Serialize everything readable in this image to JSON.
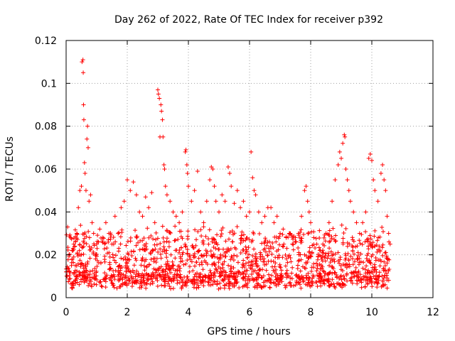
{
  "chart_data": {
    "type": "scatter",
    "title": "Day 262 of 2022, Rate Of TEC Index for receiver p392",
    "xlabel": "GPS time / hours",
    "ylabel": "ROTI / TECUs",
    "xlim": [
      0,
      12
    ],
    "ylim": [
      0,
      0.12
    ],
    "xticks": [
      0,
      2,
      4,
      6,
      8,
      10,
      12
    ],
    "xtick_labels": [
      "0",
      "2",
      "4",
      "6",
      "8",
      "10",
      "12"
    ],
    "yticks": [
      0,
      0.02,
      0.04,
      0.06,
      0.08,
      0.1,
      0.12
    ],
    "ytick_labels": [
      "0",
      "0.02",
      "0.04",
      "0.06",
      "0.08",
      "0.1",
      "0.12"
    ],
    "grid": true,
    "marker": "+",
    "color": "#ff0000",
    "data_time_range_hours": [
      0,
      10.6
    ],
    "series": [
      {
        "name": "ROTI",
        "points": [
          [
            0.0,
            0.012
          ],
          [
            0.05,
            0.033
          ],
          [
            0.1,
            0.02
          ],
          [
            0.15,
            0.028
          ],
          [
            0.2,
            0.018
          ],
          [
            0.25,
            0.025
          ],
          [
            0.3,
            0.015
          ],
          [
            0.35,
            0.03
          ],
          [
            0.4,
            0.042
          ],
          [
            0.45,
            0.05
          ],
          [
            0.5,
            0.052
          ],
          [
            0.52,
            0.11
          ],
          [
            0.55,
            0.111
          ],
          [
            0.56,
            0.105
          ],
          [
            0.57,
            0.09
          ],
          [
            0.58,
            0.083
          ],
          [
            0.6,
            0.063
          ],
          [
            0.62,
            0.058
          ],
          [
            0.65,
            0.05
          ],
          [
            0.68,
            0.074
          ],
          [
            0.7,
            0.08
          ],
          [
            0.72,
            0.07
          ],
          [
            0.75,
            0.045
          ],
          [
            0.8,
            0.048
          ],
          [
            0.85,
            0.035
          ],
          [
            0.9,
            0.03
          ],
          [
            1.0,
            0.025
          ],
          [
            1.1,
            0.032
          ],
          [
            1.2,
            0.028
          ],
          [
            1.3,
            0.035
          ],
          [
            1.4,
            0.03
          ],
          [
            1.5,
            0.025
          ],
          [
            1.6,
            0.038
          ],
          [
            1.7,
            0.03
          ],
          [
            1.8,
            0.042
          ],
          [
            1.9,
            0.045
          ],
          [
            2.0,
            0.055
          ],
          [
            2.1,
            0.05
          ],
          [
            2.2,
            0.054
          ],
          [
            2.3,
            0.048
          ],
          [
            2.4,
            0.04
          ],
          [
            2.5,
            0.038
          ],
          [
            2.6,
            0.047
          ],
          [
            2.7,
            0.042
          ],
          [
            2.8,
            0.049
          ],
          [
            2.9,
            0.035
          ],
          [
            3.0,
            0.097
          ],
          [
            3.02,
            0.095
          ],
          [
            3.05,
            0.093
          ],
          [
            3.07,
            0.075
          ],
          [
            3.1,
            0.09
          ],
          [
            3.12,
            0.087
          ],
          [
            3.15,
            0.083
          ],
          [
            3.17,
            0.075
          ],
          [
            3.2,
            0.062
          ],
          [
            3.22,
            0.06
          ],
          [
            3.25,
            0.052
          ],
          [
            3.3,
            0.048
          ],
          [
            3.4,
            0.045
          ],
          [
            3.5,
            0.04
          ],
          [
            3.6,
            0.038
          ],
          [
            3.7,
            0.035
          ],
          [
            3.8,
            0.04
          ],
          [
            3.9,
            0.068
          ],
          [
            3.92,
            0.069
          ],
          [
            3.95,
            0.062
          ],
          [
            3.97,
            0.058
          ],
          [
            4.0,
            0.052
          ],
          [
            4.1,
            0.045
          ],
          [
            4.2,
            0.05
          ],
          [
            4.3,
            0.059
          ],
          [
            4.4,
            0.04
          ],
          [
            4.5,
            0.035
          ],
          [
            4.6,
            0.045
          ],
          [
            4.7,
            0.055
          ],
          [
            4.75,
            0.061
          ],
          [
            4.8,
            0.06
          ],
          [
            4.85,
            0.052
          ],
          [
            4.9,
            0.045
          ],
          [
            5.0,
            0.04
          ],
          [
            5.1,
            0.048
          ],
          [
            5.2,
            0.045
          ],
          [
            5.3,
            0.061
          ],
          [
            5.35,
            0.058
          ],
          [
            5.4,
            0.052
          ],
          [
            5.5,
            0.044
          ],
          [
            5.6,
            0.05
          ],
          [
            5.7,
            0.042
          ],
          [
            5.8,
            0.045
          ],
          [
            5.9,
            0.038
          ],
          [
            6.0,
            0.04
          ],
          [
            6.05,
            0.068
          ],
          [
            6.1,
            0.056
          ],
          [
            6.15,
            0.05
          ],
          [
            6.2,
            0.048
          ],
          [
            6.3,
            0.04
          ],
          [
            6.4,
            0.035
          ],
          [
            6.5,
            0.038
          ],
          [
            6.6,
            0.042
          ],
          [
            6.7,
            0.042
          ],
          [
            6.8,
            0.035
          ],
          [
            6.9,
            0.038
          ],
          [
            7.0,
            0.03
          ],
          [
            7.1,
            0.032
          ],
          [
            7.2,
            0.028
          ],
          [
            7.3,
            0.03
          ],
          [
            7.4,
            0.025
          ],
          [
            7.5,
            0.028
          ],
          [
            7.6,
            0.03
          ],
          [
            7.7,
            0.038
          ],
          [
            7.8,
            0.05
          ],
          [
            7.85,
            0.052
          ],
          [
            7.9,
            0.045
          ],
          [
            7.95,
            0.04
          ],
          [
            8.0,
            0.035
          ],
          [
            8.1,
            0.028
          ],
          [
            8.2,
            0.025
          ],
          [
            8.3,
            0.022
          ],
          [
            8.4,
            0.025
          ],
          [
            8.5,
            0.03
          ],
          [
            8.6,
            0.035
          ],
          [
            8.7,
            0.045
          ],
          [
            8.8,
            0.055
          ],
          [
            8.9,
            0.062
          ],
          [
            8.95,
            0.068
          ],
          [
            9.0,
            0.065
          ],
          [
            9.05,
            0.072
          ],
          [
            9.1,
            0.076
          ],
          [
            9.12,
            0.075
          ],
          [
            9.15,
            0.06
          ],
          [
            9.2,
            0.055
          ],
          [
            9.25,
            0.05
          ],
          [
            9.3,
            0.045
          ],
          [
            9.4,
            0.04
          ],
          [
            9.5,
            0.035
          ],
          [
            9.6,
            0.03
          ],
          [
            9.7,
            0.035
          ],
          [
            9.8,
            0.04
          ],
          [
            9.9,
            0.065
          ],
          [
            9.95,
            0.067
          ],
          [
            10.0,
            0.064
          ],
          [
            10.05,
            0.055
          ],
          [
            10.1,
            0.05
          ],
          [
            10.2,
            0.045
          ],
          [
            10.3,
            0.058
          ],
          [
            10.35,
            0.062
          ],
          [
            10.4,
            0.055
          ],
          [
            10.45,
            0.05
          ],
          [
            10.5,
            0.038
          ],
          [
            10.55,
            0.03
          ],
          [
            10.6,
            0.025
          ]
        ]
      }
    ]
  }
}
